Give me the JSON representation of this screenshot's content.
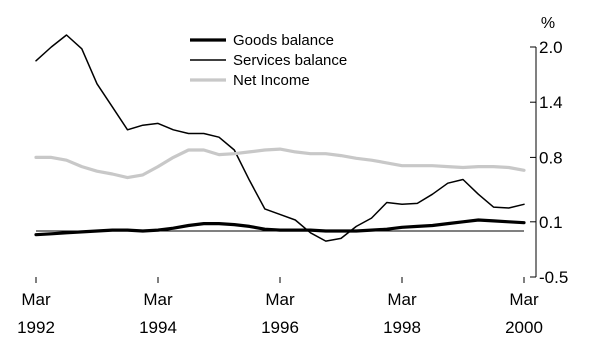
{
  "chart_data": {
    "type": "line",
    "title": "",
    "xlabel": "",
    "ylabel": "%",
    "ylim": [
      -0.5,
      2.0
    ],
    "xlim": [
      1992.0,
      2000.0
    ],
    "yticks": [
      "2.0",
      "1.4",
      "0.8",
      "0.1",
      "-0.5"
    ],
    "ytick_values": [
      2.0,
      1.4,
      0.8,
      0.1,
      -0.5
    ],
    "xticks": [
      {
        "month": "Mar",
        "year": "1992",
        "value": 1992.0
      },
      {
        "month": "Mar",
        "year": "1994",
        "value": 1994.0
      },
      {
        "month": "Mar",
        "year": "1996",
        "value": 1996.0
      },
      {
        "month": "Mar",
        "year": "1998",
        "value": 1998.0
      },
      {
        "month": "Mar",
        "year": "2000",
        "value": 2000.0
      }
    ],
    "reference_line": 0.0,
    "legend_position": "top-center",
    "series": [
      {
        "name": "Goods balance",
        "color": "#000000",
        "width": 3.2,
        "x": [
          1992.0,
          1992.25,
          1992.5,
          1992.75,
          1993.0,
          1993.25,
          1993.5,
          1993.75,
          1994.0,
          1994.25,
          1994.5,
          1994.75,
          1995.0,
          1995.25,
          1995.5,
          1995.75,
          1996.0,
          1996.25,
          1996.5,
          1996.75,
          1997.0,
          1997.25,
          1997.5,
          1997.75,
          1998.0,
          1998.25,
          1998.5,
          1998.75,
          1999.0,
          1999.25,
          1999.5,
          1999.75,
          2000.0
        ],
        "y": [
          -0.04,
          -0.03,
          -0.02,
          -0.01,
          0.0,
          0.01,
          0.01,
          0.0,
          0.01,
          0.03,
          0.06,
          0.08,
          0.08,
          0.07,
          0.05,
          0.02,
          0.01,
          0.01,
          0.01,
          0.0,
          0.0,
          0.0,
          0.01,
          0.02,
          0.04,
          0.05,
          0.06,
          0.08,
          0.1,
          0.12,
          0.11,
          0.1,
          0.09
        ]
      },
      {
        "name": "Services balance",
        "color": "#000000",
        "width": 1.5,
        "x": [
          1992.0,
          1992.25,
          1992.5,
          1992.75,
          1993.0,
          1993.25,
          1993.5,
          1993.75,
          1994.0,
          1994.25,
          1994.5,
          1994.75,
          1995.0,
          1995.25,
          1995.5,
          1995.75,
          1996.0,
          1996.25,
          1996.5,
          1996.75,
          1997.0,
          1997.25,
          1997.5,
          1997.75,
          1998.0,
          1998.25,
          1998.5,
          1998.75,
          1999.0,
          1999.25,
          1999.5,
          1999.75,
          2000.0
        ],
        "y": [
          1.85,
          2.0,
          2.13,
          1.98,
          1.6,
          1.35,
          1.1,
          1.15,
          1.17,
          1.1,
          1.06,
          1.06,
          1.02,
          0.88,
          0.55,
          0.24,
          0.18,
          0.12,
          -0.02,
          -0.11,
          -0.08,
          0.05,
          0.14,
          0.31,
          0.29,
          0.3,
          0.4,
          0.52,
          0.56,
          0.4,
          0.26,
          0.25,
          0.29
        ]
      },
      {
        "name": "Net Income",
        "color": "#c8c8c8",
        "width": 3.2,
        "x": [
          1992.0,
          1992.25,
          1992.5,
          1992.75,
          1993.0,
          1993.25,
          1993.5,
          1993.75,
          1994.0,
          1994.25,
          1994.5,
          1994.75,
          1995.0,
          1995.25,
          1995.5,
          1995.75,
          1996.0,
          1996.25,
          1996.5,
          1996.75,
          1997.0,
          1997.25,
          1997.5,
          1997.75,
          1998.0,
          1998.25,
          1998.5,
          1998.75,
          1999.0,
          1999.25,
          1999.5,
          1999.75,
          2000.0
        ],
        "y": [
          0.8,
          0.8,
          0.77,
          0.7,
          0.65,
          0.62,
          0.58,
          0.61,
          0.7,
          0.8,
          0.88,
          0.88,
          0.83,
          0.84,
          0.86,
          0.88,
          0.89,
          0.86,
          0.84,
          0.84,
          0.82,
          0.79,
          0.77,
          0.74,
          0.71,
          0.71,
          0.71,
          0.7,
          0.69,
          0.7,
          0.7,
          0.69,
          0.66
        ]
      }
    ]
  }
}
